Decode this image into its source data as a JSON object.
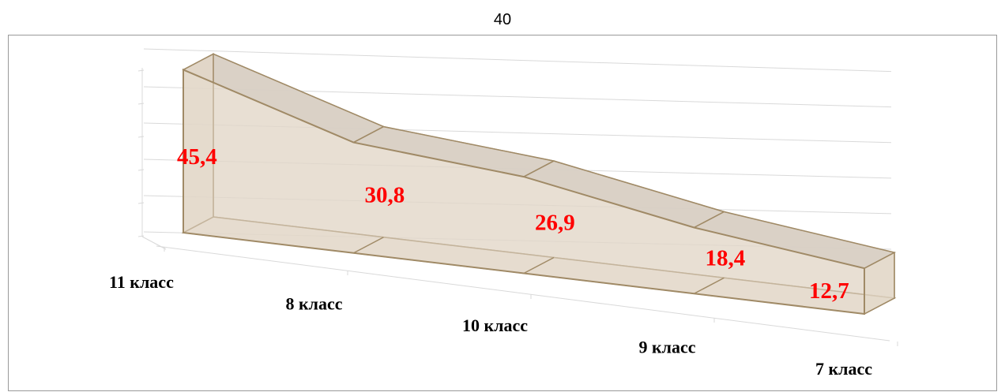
{
  "page": {
    "number": "40"
  },
  "chart_data": {
    "type": "area",
    "style": "3d",
    "categories": [
      "11 класс",
      "8 класс",
      "10 класс",
      "9 класс",
      "7 класс"
    ],
    "values": [
      45.4,
      30.8,
      26.9,
      18.4,
      12.7
    ],
    "value_labels": [
      "45,4",
      "30,8",
      "26,9",
      "18,4",
      "12,7"
    ],
    "ylim": [
      0,
      50
    ],
    "grid": true,
    "legend": "none",
    "colors": {
      "fill": "#e2d7c8",
      "top": "#d7cec3",
      "edge": "#a08a66",
      "value_label": "#ff0000",
      "grid": "#d9d9d9"
    }
  }
}
